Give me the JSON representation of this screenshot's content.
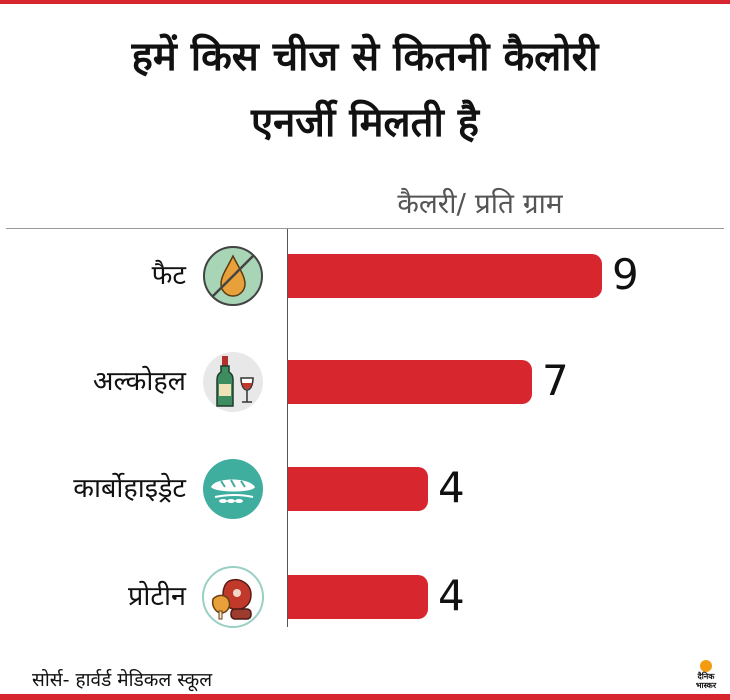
{
  "title_line1": "हमें किस चीज से कितनी कैलोरी",
  "title_line2": "एनर्जी मिलती है",
  "source": "सोर्स- हार्वर्ड मेडिकल स्कूल",
  "logo_text_1": "दैनिक",
  "logo_text_2": "भास्कर",
  "colors": {
    "bar": "#d7262e",
    "accent": "#d7262e"
  },
  "chart_data": {
    "type": "bar",
    "orientation": "horizontal",
    "title": "हमें किस चीज से कितनी कैलोरी एनर्जी मिलती है",
    "xlabel": "कैलरी/ प्रति ग्राम",
    "ylabel": "",
    "categories": [
      "फैट",
      "अल्कोहल",
      "कार्बोहाइड्रेट",
      "प्रोटीन"
    ],
    "values": [
      9,
      7,
      4,
      4
    ],
    "icons": [
      "oil-drop-icon",
      "wine-bottle-icon",
      "bread-wheat-icon",
      "meat-icon"
    ],
    "xlim": [
      0,
      9
    ]
  }
}
